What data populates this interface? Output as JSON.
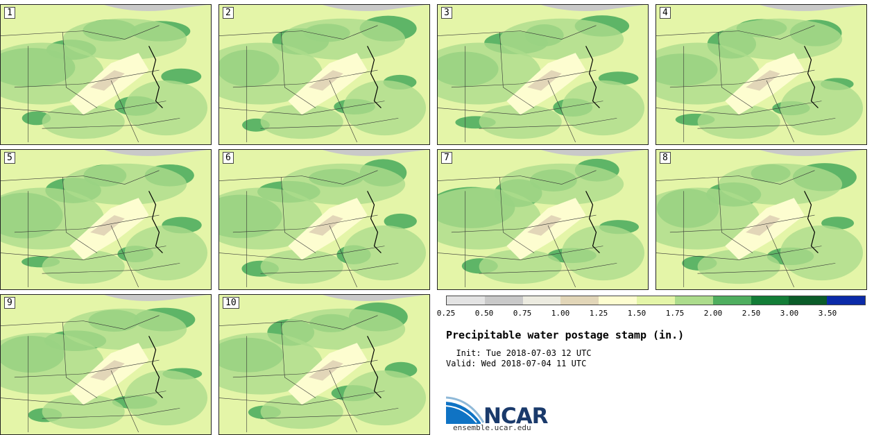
{
  "stamps": [
    {
      "label": "1"
    },
    {
      "label": "2"
    },
    {
      "label": "3"
    },
    {
      "label": "4"
    },
    {
      "label": "5"
    },
    {
      "label": "6"
    },
    {
      "label": "7"
    },
    {
      "label": "8"
    },
    {
      "label": "9"
    },
    {
      "label": "10"
    }
  ],
  "colorbar": {
    "colors": [
      "#e3e3e3",
      "#c9c9c9",
      "#ecebe0",
      "#e2d6b8",
      "#fdfdd0",
      "#e4f5a8",
      "#acdc8c",
      "#4fae5f",
      "#137d37",
      "#0b5c29",
      "#0b2aa8"
    ],
    "ticks": [
      "0.25",
      "0.50",
      "0.75",
      "1.00",
      "1.25",
      "1.50",
      "1.75",
      "2.00",
      "2.50",
      "3.00",
      "3.50"
    ]
  },
  "title": "Precipitable water postage stamp (in.)",
  "init_line": "  Init: Tue 2018-07-03 12 UTC",
  "valid_line": "Valid: Wed 2018-07-04 11 UTC",
  "logo": {
    "text": "NCAR",
    "url": "ensemble.ucar.edu"
  }
}
